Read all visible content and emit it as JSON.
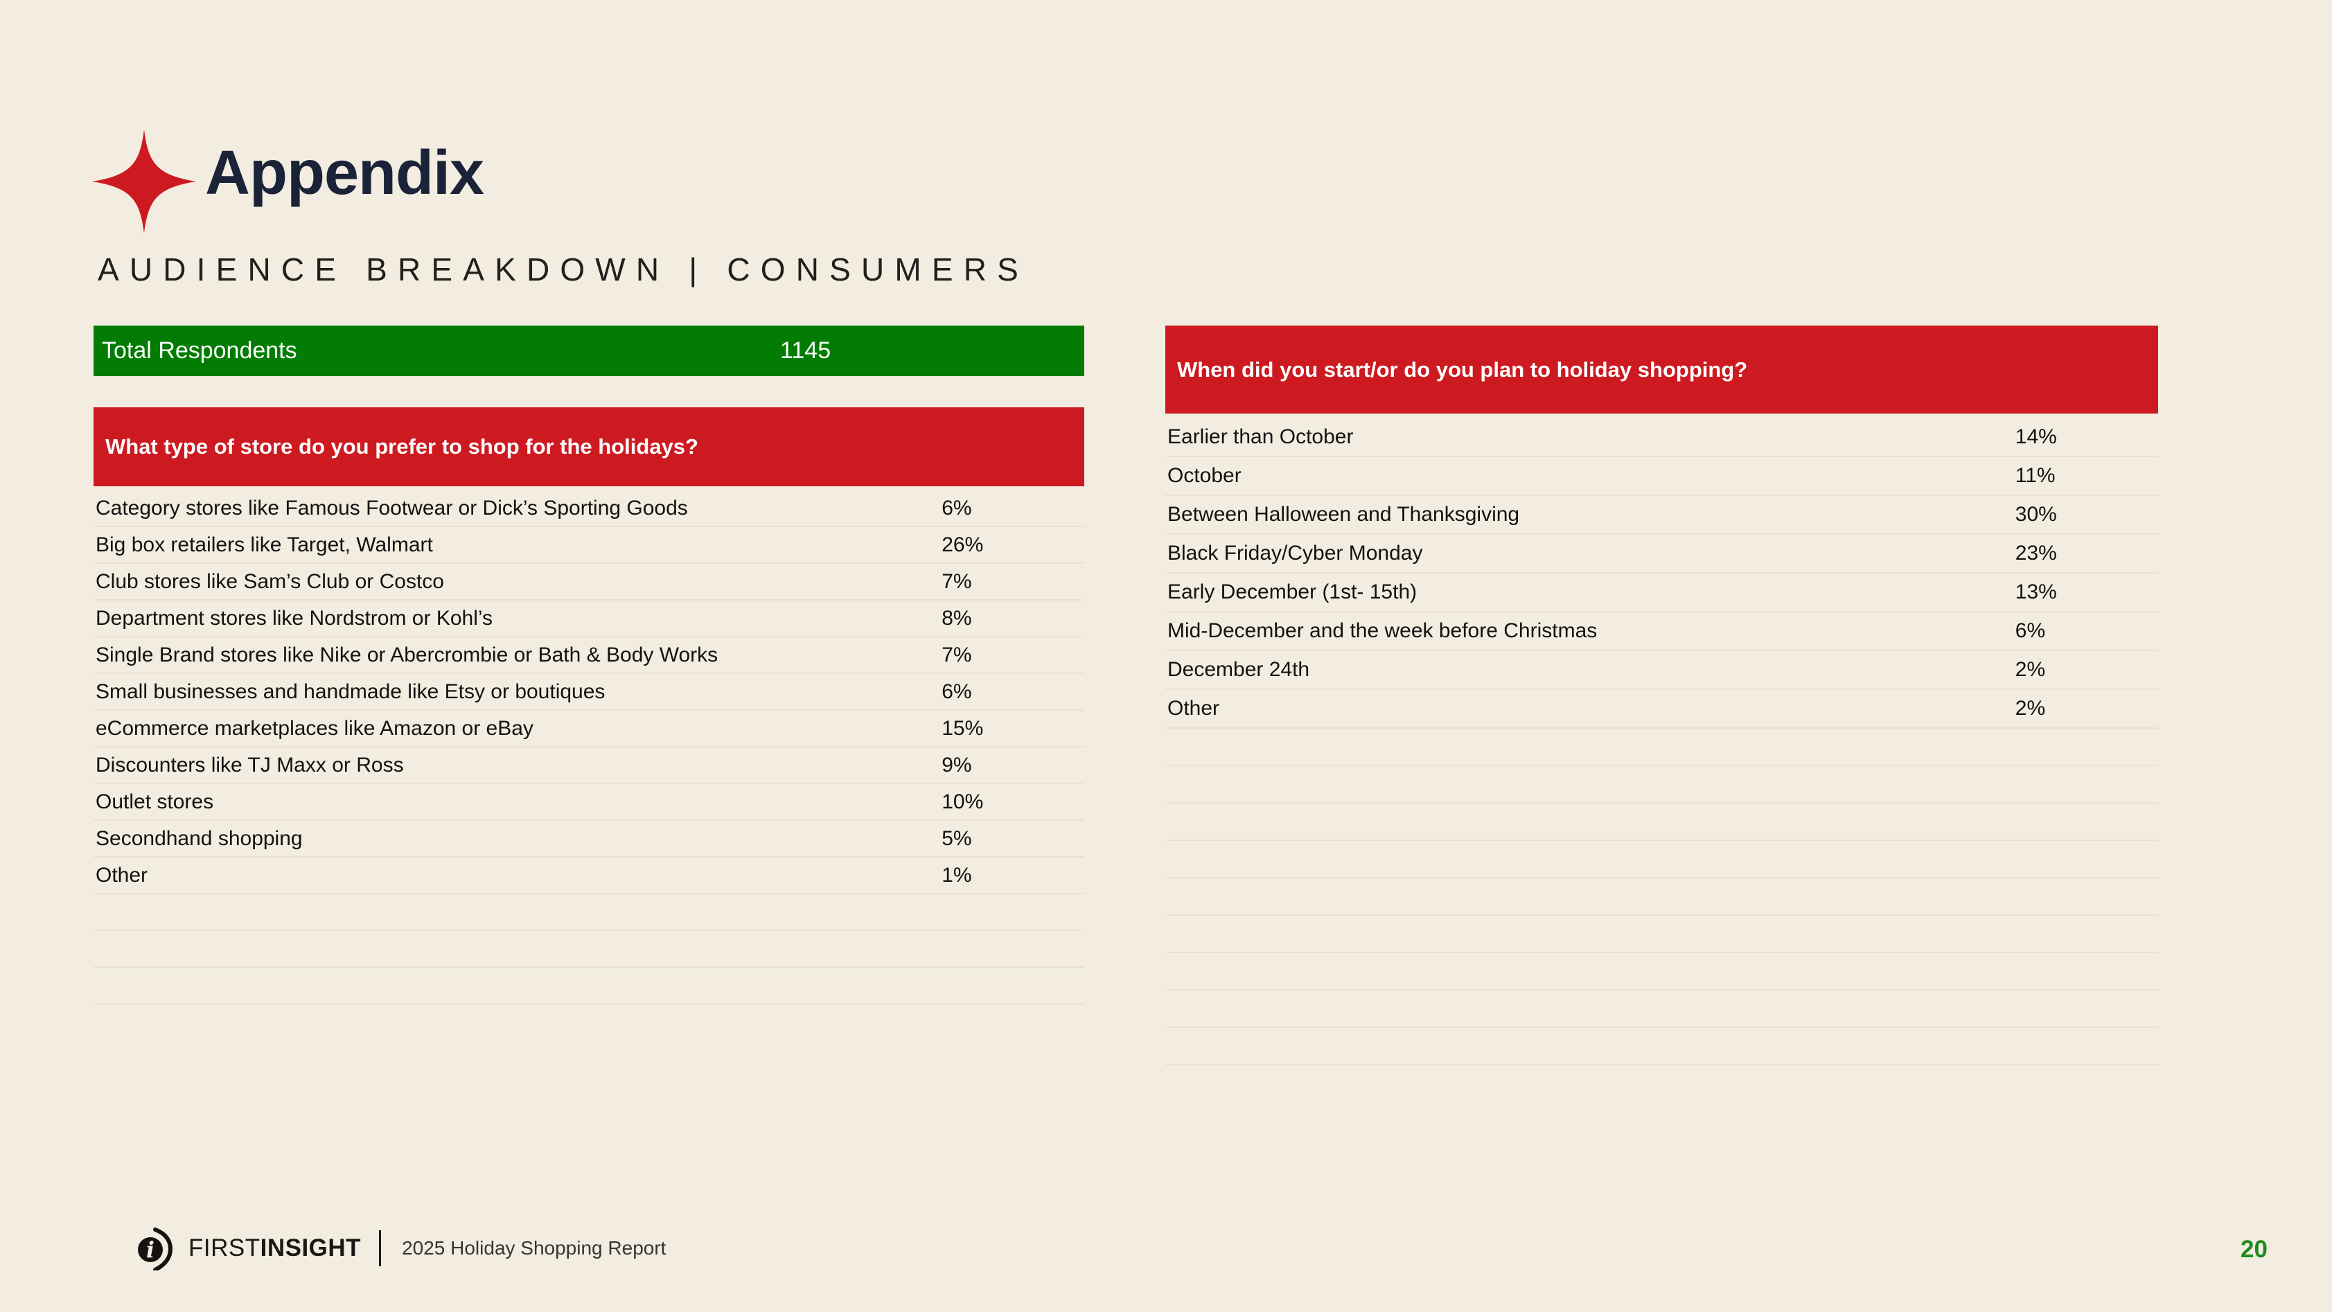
{
  "page": {
    "title": "Appendix",
    "subtitle": "AUDIENCE BREAKDOWN | CONSUMERS",
    "page_number": "20"
  },
  "summary": {
    "label": "Total Respondents",
    "value": "1145"
  },
  "tables": {
    "store_preference": {
      "header": "What type of store do you prefer to shop for the holidays?",
      "rows": [
        {
          "label": "Category stores like Famous Footwear or Dick’s Sporting Goods",
          "value": "6%"
        },
        {
          "label": "Big box retailers like Target, Walmart",
          "value": "26%"
        },
        {
          "label": "Club stores like Sam’s Club or Costco",
          "value": "7%"
        },
        {
          "label": "Department stores like Nordstrom or Kohl’s",
          "value": "8%"
        },
        {
          "label": "Single Brand stores like Nike or Abercrombie or Bath & Body Works",
          "value": "7%"
        },
        {
          "label": "Small businesses and handmade like Etsy or boutiques",
          "value": "6%"
        },
        {
          "label": "eCommerce marketplaces like Amazon or eBay",
          "value": "15%"
        },
        {
          "label": "Discounters like TJ Maxx or Ross",
          "value": "9%"
        },
        {
          "label": "Outlet stores",
          "value": "10%"
        },
        {
          "label": "Secondhand shopping",
          "value": "5%"
        },
        {
          "label": "Other",
          "value": "1%"
        }
      ],
      "empty_rows": 3
    },
    "shopping_timing": {
      "header": "When did you start/or do you plan to holiday shopping?",
      "rows": [
        {
          "label": "Earlier than October",
          "value": "14%"
        },
        {
          "label": "October",
          "value": "11%"
        },
        {
          "label": "Between Halloween and Thanksgiving",
          "value": "30%"
        },
        {
          "label": "Black Friday/Cyber Monday",
          "value": "23%"
        },
        {
          "label": "Early December (1st- 15th)",
          "value": "13%"
        },
        {
          "label": "Mid-December and the week before Christmas",
          "value": "6%"
        },
        {
          "label": "December 24th",
          "value": "2%"
        },
        {
          "label": "Other",
          "value": "2%"
        }
      ],
      "empty_rows": 9
    }
  },
  "footer": {
    "brand_first": "FIRST",
    "brand_rest": "INSIGHT",
    "report_title": "2025 Holiday Shopping Report"
  },
  "icons": {
    "title_marker": "four-point-star",
    "logo": "first-insight-logo"
  },
  "colors": {
    "background": "#f2ede0",
    "accent_green": "#027c02",
    "accent_red": "#cd1a20",
    "title_navy": "#1b2338",
    "page_number_green": "#1d8a1d",
    "row_divider": "#e7e2d4"
  }
}
